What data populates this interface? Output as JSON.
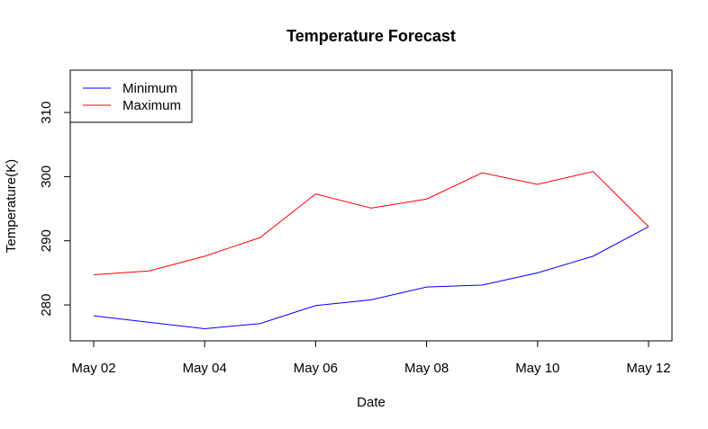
{
  "chart_data": {
    "type": "line",
    "title": "Temperature Forecast",
    "xlabel": "Date",
    "ylabel": "Temperature(K)",
    "x": [
      "May 02",
      "May 03",
      "May 04",
      "May 05",
      "May 06",
      "May 07",
      "May 08",
      "May 09",
      "May 10",
      "May 11",
      "May 12"
    ],
    "x_ticks": [
      "May 02",
      "May 04",
      "May 06",
      "May 08",
      "May 10",
      "May 12"
    ],
    "y_ticks": [
      280,
      290,
      300,
      310
    ],
    "ylim": [
      274.4,
      316.6
    ],
    "grid": false,
    "legend_position": "top-left",
    "series": [
      {
        "name": "Minimum",
        "color": "#0000ff",
        "values": [
          278.3,
          277.3,
          276.3,
          277.1,
          279.9,
          280.8,
          282.8,
          283.1,
          285.0,
          287.6,
          292.2
        ]
      },
      {
        "name": "Maximum",
        "color": "#ff0000",
        "values": [
          284.7,
          285.3,
          287.6,
          290.5,
          297.3,
          295.1,
          296.5,
          300.6,
          298.8,
          300.8,
          292.2
        ]
      }
    ]
  }
}
